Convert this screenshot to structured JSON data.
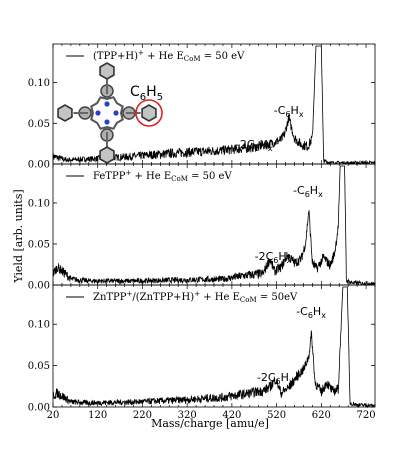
{
  "chart_data": {
    "type": "line",
    "xlabel": "Mass/charge [amu/e]",
    "ylabel": "Yield [arb. units]",
    "xlim": [
      20,
      740
    ],
    "xticks": [
      "20",
      "120",
      "220",
      "320",
      "420",
      "520",
      "620",
      "720"
    ],
    "yticks": [
      "0.00",
      "0.05",
      "0.10"
    ],
    "ylim": [
      0,
      0.145
    ],
    "grid": false,
    "panels": [
      {
        "legend": "(TPP+H)$^+$ + He E$_{CoM}$ = 50 eV",
        "legend_main": "(TPP+H)",
        "legend_sup": "+",
        "legend_mid": " + He E",
        "legend_sub": "CoM",
        "legend_end": " = 50 eV",
        "annotations": [
          {
            "text": "-C6Hx",
            "main": "-C",
            "s1": "6",
            "mid": "H",
            "s2": "x",
            "x_data": 547
          },
          {
            "text": "-2C6Hx",
            "main": "-2C",
            "s1": "6",
            "mid": "H",
            "s2": "x",
            "x_data": 470
          }
        ],
        "molecule_label": {
          "main": "C",
          "s1": "6",
          "mid": "H",
          "s2": "5"
        },
        "series": [
          {
            "x": [
              20,
              50,
              100,
              200,
              300,
              400,
              460,
              500,
              530,
              538,
              547,
              560,
              575,
              590,
              600,
              608,
              612,
              616,
              620,
              625,
              640,
              700,
              740
            ],
            "y": [
              0.008,
              0.004,
              0.005,
              0.008,
              0.012,
              0.015,
              0.018,
              0.022,
              0.028,
              0.035,
              0.055,
              0.03,
              0.022,
              0.02,
              0.03,
              0.145,
              0.145,
              0.145,
              0.145,
              0.003,
              0.001,
              0.001,
              0.001
            ]
          }
        ]
      },
      {
        "legend": "FeTPP$^+$ + He E$_{CoM}$ = 50 eV",
        "legend_main": "FeTPP",
        "legend_sup": "+",
        "legend_mid": " + He E",
        "legend_sub": "CoM",
        "legend_end": " = 50 eV",
        "annotations": [
          {
            "text": "-C6Hx",
            "main": "-C",
            "s1": "6",
            "mid": "H",
            "s2": "x",
            "x_data": 590
          },
          {
            "text": "-2C6Hx",
            "main": "-2C",
            "s1": "6",
            "mid": "H",
            "s2": "x",
            "x_data": 512
          }
        ],
        "series": [
          {
            "x": [
              20,
              30,
              60,
              100,
              200,
              300,
              400,
              450,
              490,
              505,
              515,
              530,
              545,
              560,
              575,
              585,
              592,
              600,
              610,
              625,
              640,
              650,
              658,
              662,
              668,
              672,
              676,
              690,
              740
            ],
            "y": [
              0.012,
              0.02,
              0.006,
              0.004,
              0.004,
              0.005,
              0.006,
              0.01,
              0.012,
              0.03,
              0.015,
              0.02,
              0.035,
              0.025,
              0.03,
              0.05,
              0.09,
              0.025,
              0.018,
              0.032,
              0.022,
              0.038,
              0.07,
              0.145,
              0.145,
              0.145,
              0.004,
              0.002,
              0.001
            ]
          }
        ]
      },
      {
        "legend": "ZnTPP+/(ZnTPP+H)+ + He E$_{CoM}$ = 50eV",
        "legend_main": "ZnTPP",
        "legend_sup": "+",
        "legend_mid": "/(ZnTPP+H)",
        "legend_sup2": "+",
        "legend_mid2": " + He E",
        "legend_sub": "CoM",
        "legend_end": " = 50eV",
        "annotations": [
          {
            "text": "-C6Hx",
            "main": "-C",
            "s1": "6",
            "mid": "H",
            "s2": "x",
            "x_data": 597
          },
          {
            "text": "-2C6Hx",
            "main": "-2C",
            "s1": "6",
            "mid": "H",
            "s2": "x",
            "x_data": 517
          }
        ],
        "series": [
          {
            "x": [
              20,
              30,
              60,
              100,
              200,
              300,
              400,
              450,
              490,
              505,
              518,
              530,
              548,
              565,
              582,
              592,
              598,
              606,
              620,
              632,
              645,
              658,
              668,
              672,
              678,
              684,
              700,
              740
            ],
            "y": [
              0.012,
              0.015,
              0.005,
              0.004,
              0.005,
              0.007,
              0.01,
              0.014,
              0.018,
              0.022,
              0.032,
              0.015,
              0.022,
              0.035,
              0.045,
              0.06,
              0.087,
              0.028,
              0.016,
              0.028,
              0.017,
              0.02,
              0.145,
              0.145,
              0.145,
              0.004,
              0.002,
              0.001
            ]
          }
        ]
      }
    ]
  }
}
